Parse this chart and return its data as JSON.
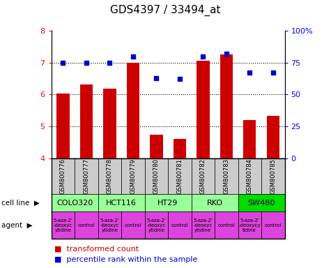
{
  "title": "GDS4397 / 33494_at",
  "samples": [
    "GSM800776",
    "GSM800777",
    "GSM800778",
    "GSM800779",
    "GSM800780",
    "GSM800781",
    "GSM800782",
    "GSM800783",
    "GSM800784",
    "GSM800785"
  ],
  "bar_values": [
    6.03,
    6.32,
    6.19,
    7.0,
    4.73,
    4.6,
    7.07,
    7.25,
    5.2,
    5.32
  ],
  "dot_values": [
    75,
    75,
    75,
    80,
    63,
    62,
    80,
    82,
    67,
    67
  ],
  "ylim": [
    4,
    8
  ],
  "yticks": [
    4,
    5,
    6,
    7,
    8
  ],
  "y2lim": [
    0,
    100
  ],
  "y2ticks": [
    0,
    25,
    50,
    75,
    100
  ],
  "y2labels": [
    "0",
    "25",
    "50",
    "75",
    "100%"
  ],
  "bar_color": "#cc0000",
  "dot_color": "#0000cc",
  "cell_lines": [
    {
      "name": "COLO320",
      "start": 0,
      "end": 2,
      "color": "#99ff99"
    },
    {
      "name": "HCT116",
      "start": 2,
      "end": 4,
      "color": "#99ff99"
    },
    {
      "name": "HT29",
      "start": 4,
      "end": 6,
      "color": "#99ff99"
    },
    {
      "name": "RKO",
      "start": 6,
      "end": 8,
      "color": "#99ff99"
    },
    {
      "name": "SW480",
      "start": 8,
      "end": 10,
      "color": "#00dd00"
    }
  ],
  "agents": [
    {
      "name": "5-aza-2'\n-deoxyc\nytidine",
      "start": 0,
      "end": 1,
      "color": "#dd44dd"
    },
    {
      "name": "control",
      "start": 1,
      "end": 2,
      "color": "#dd44dd"
    },
    {
      "name": "5-aza-2'\n-deoxyc\nytidine",
      "start": 2,
      "end": 3,
      "color": "#dd44dd"
    },
    {
      "name": "control",
      "start": 3,
      "end": 4,
      "color": "#dd44dd"
    },
    {
      "name": "5-aza-2'\n-deoxyc\nytidine",
      "start": 4,
      "end": 5,
      "color": "#dd44dd"
    },
    {
      "name": "control",
      "start": 5,
      "end": 6,
      "color": "#dd44dd"
    },
    {
      "name": "5-aza-2'\n-deoxyc\nytidine",
      "start": 6,
      "end": 7,
      "color": "#dd44dd"
    },
    {
      "name": "control",
      "start": 7,
      "end": 8,
      "color": "#dd44dd"
    },
    {
      "name": "5-aza-2'\n-deoxycy\ntidine",
      "start": 8,
      "end": 9,
      "color": "#dd44dd"
    },
    {
      "name": "control",
      "start": 9,
      "end": 10,
      "color": "#dd44dd"
    }
  ],
  "sample_bg_color": "#cccccc",
  "cell_line_label": "cell line",
  "agent_label": "agent",
  "legend_bar": "transformed count",
  "legend_dot": "percentile rank within the sample",
  "title_fontsize": 11,
  "tick_fontsize": 8,
  "sample_fontsize": 6,
  "cell_fontsize": 8,
  "agent_fontsize": 5,
  "label_fontsize": 7.5,
  "legend_fontsize": 8
}
